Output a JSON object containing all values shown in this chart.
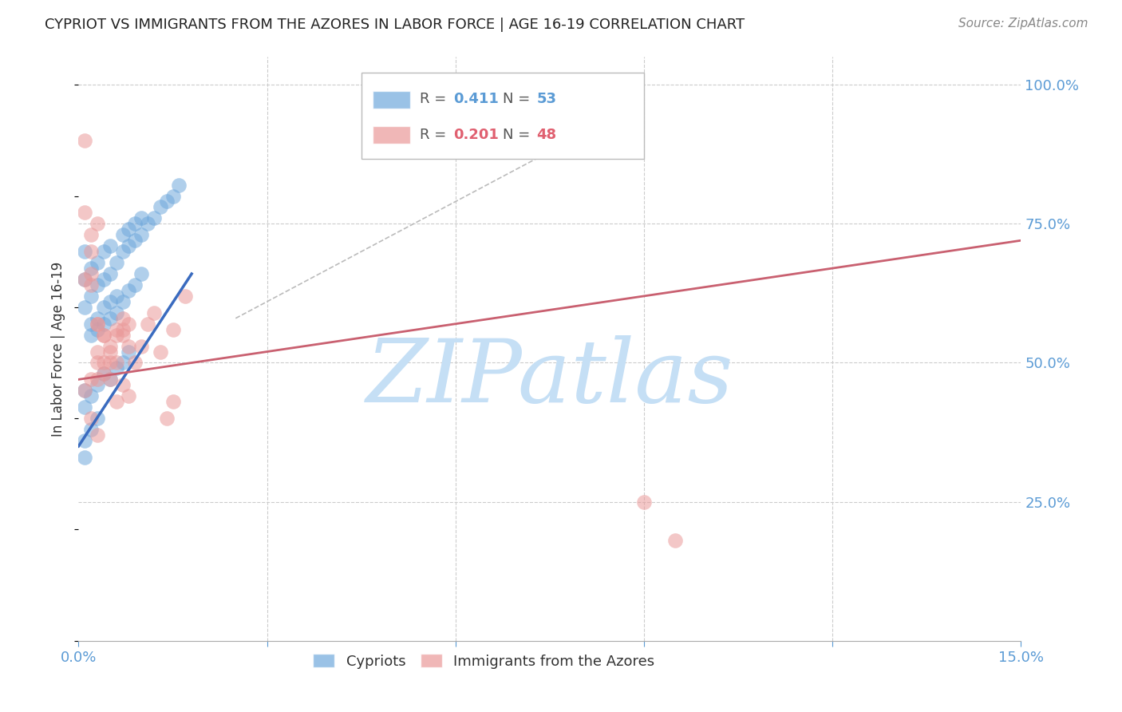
{
  "title": "CYPRIOT VS IMMIGRANTS FROM THE AZORES IN LABOR FORCE | AGE 16-19 CORRELATION CHART",
  "source": "Source: ZipAtlas.com",
  "ylabel": "In Labor Force | Age 16-19",
  "xlim": [
    0.0,
    0.15
  ],
  "ylim": [
    0.0,
    1.05
  ],
  "xtick_positions": [
    0.0,
    0.03,
    0.06,
    0.09,
    0.12,
    0.15
  ],
  "xtick_labels": [
    "0.0%",
    "",
    "",
    "",
    "",
    "15.0%"
  ],
  "yticks_right": [
    0.25,
    0.5,
    0.75,
    1.0
  ],
  "ytick_labels_right": [
    "25.0%",
    "50.0%",
    "75.0%",
    "100.0%"
  ],
  "blue_color": "#6fa8dc",
  "pink_color": "#ea9999",
  "blue_line_color": "#3a6bbf",
  "pink_line_color": "#c96070",
  "grid_color": "#cccccc",
  "diag_line_color": "#bbbbbb",
  "watermark": "ZIPatlas",
  "watermark_color": "#c5dff5",
  "background_color": "#ffffff",
  "blue_r": "0.411",
  "blue_n": "53",
  "pink_r": "0.201",
  "pink_n": "48",
  "blue_points_x": [
    0.001,
    0.001,
    0.001,
    0.002,
    0.002,
    0.003,
    0.003,
    0.004,
    0.004,
    0.005,
    0.005,
    0.006,
    0.007,
    0.007,
    0.008,
    0.008,
    0.009,
    0.009,
    0.01,
    0.01,
    0.011,
    0.012,
    0.013,
    0.014,
    0.015,
    0.016,
    0.002,
    0.002,
    0.003,
    0.003,
    0.004,
    0.004,
    0.005,
    0.005,
    0.006,
    0.006,
    0.007,
    0.008,
    0.009,
    0.01,
    0.001,
    0.001,
    0.002,
    0.003,
    0.004,
    0.005,
    0.006,
    0.007,
    0.008,
    0.001,
    0.001,
    0.002,
    0.003
  ],
  "blue_points_y": [
    0.6,
    0.65,
    0.7,
    0.62,
    0.67,
    0.64,
    0.68,
    0.65,
    0.7,
    0.66,
    0.71,
    0.68,
    0.7,
    0.73,
    0.71,
    0.74,
    0.72,
    0.75,
    0.73,
    0.76,
    0.75,
    0.76,
    0.78,
    0.79,
    0.8,
    0.82,
    0.57,
    0.55,
    0.56,
    0.58,
    0.57,
    0.6,
    0.58,
    0.61,
    0.59,
    0.62,
    0.61,
    0.63,
    0.64,
    0.66,
    0.45,
    0.42,
    0.44,
    0.46,
    0.48,
    0.47,
    0.49,
    0.5,
    0.52,
    0.33,
    0.36,
    0.38,
    0.4
  ],
  "pink_points_x": [
    0.001,
    0.001,
    0.002,
    0.002,
    0.003,
    0.003,
    0.004,
    0.004,
    0.005,
    0.005,
    0.006,
    0.006,
    0.007,
    0.007,
    0.008,
    0.009,
    0.01,
    0.011,
    0.012,
    0.013,
    0.015,
    0.017,
    0.001,
    0.002,
    0.003,
    0.003,
    0.004,
    0.005,
    0.006,
    0.007,
    0.008,
    0.002,
    0.003,
    0.004,
    0.005,
    0.006,
    0.007,
    0.008,
    0.001,
    0.002,
    0.003,
    0.073,
    0.09,
    0.095,
    0.014,
    0.015,
    0.002,
    0.003
  ],
  "pink_points_y": [
    0.9,
    0.65,
    0.73,
    0.66,
    0.57,
    0.52,
    0.55,
    0.5,
    0.52,
    0.47,
    0.5,
    0.55,
    0.55,
    0.58,
    0.57,
    0.5,
    0.53,
    0.57,
    0.59,
    0.52,
    0.56,
    0.62,
    0.45,
    0.47,
    0.47,
    0.5,
    0.48,
    0.5,
    0.43,
    0.46,
    0.44,
    0.64,
    0.57,
    0.55,
    0.53,
    0.56,
    0.56,
    0.53,
    0.77,
    0.7,
    0.75,
    0.97,
    0.25,
    0.18,
    0.4,
    0.43,
    0.4,
    0.37
  ],
  "blue_line_x": [
    0.0,
    0.018
  ],
  "blue_line_y": [
    0.35,
    0.66
  ],
  "pink_line_x": [
    0.0,
    0.15
  ],
  "pink_line_y": [
    0.47,
    0.72
  ],
  "diag_line_x": [
    0.025,
    0.075
  ],
  "diag_line_y": [
    0.58,
    0.88
  ]
}
